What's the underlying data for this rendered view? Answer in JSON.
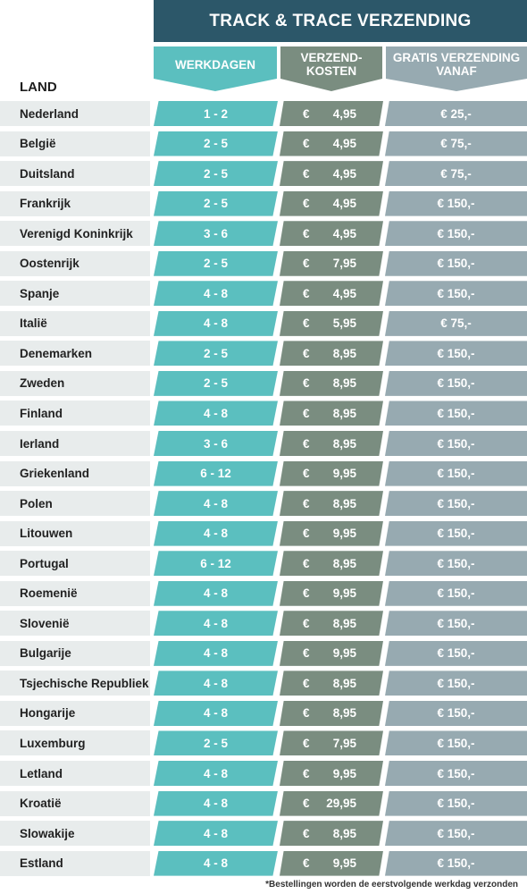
{
  "header": {
    "title": "TRACK & TRACE VERZENDING",
    "land_label": "LAND",
    "days_label": "WERKDAGEN",
    "cost_label_line1": "VERZEND-",
    "cost_label_line2": "KOSTEN",
    "free_label_line1": "GRATIS VERZENDING",
    "free_label_line2": "VANAF"
  },
  "currency_symbol": "€",
  "rows": [
    {
      "land": "Nederland",
      "days": "1 - 2",
      "cost": "4,95",
      "free": "€ 25,-"
    },
    {
      "land": "België",
      "days": "2 - 5",
      "cost": "4,95",
      "free": "€ 75,-"
    },
    {
      "land": "Duitsland",
      "days": "2 - 5",
      "cost": "4,95",
      "free": "€ 75,-"
    },
    {
      "land": "Frankrijk",
      "days": "2 - 5",
      "cost": "4,95",
      "free": "€ 150,-"
    },
    {
      "land": "Verenigd Koninkrijk",
      "days": "3 - 6",
      "cost": "4,95",
      "free": "€ 150,-"
    },
    {
      "land": "Oostenrijk",
      "days": "2 - 5",
      "cost": "7,95",
      "free": "€ 150,-"
    },
    {
      "land": "Spanje",
      "days": "4 - 8",
      "cost": "4,95",
      "free": "€ 150,-"
    },
    {
      "land": "Italië",
      "days": "4 - 8",
      "cost": "5,95",
      "free": "€ 75,-"
    },
    {
      "land": "Denemarken",
      "days": "2 - 5",
      "cost": "8,95",
      "free": "€ 150,-"
    },
    {
      "land": "Zweden",
      "days": "2 - 5",
      "cost": "8,95",
      "free": "€ 150,-"
    },
    {
      "land": "Finland",
      "days": "4 - 8",
      "cost": "8,95",
      "free": "€ 150,-"
    },
    {
      "land": "Ierland",
      "days": "3 - 6",
      "cost": "8,95",
      "free": "€ 150,-"
    },
    {
      "land": "Griekenland",
      "days": "6 - 12",
      "cost": "9,95",
      "free": "€ 150,-"
    },
    {
      "land": "Polen",
      "days": "4 - 8",
      "cost": "8,95",
      "free": "€ 150,-"
    },
    {
      "land": "Litouwen",
      "days": "4 - 8",
      "cost": "9,95",
      "free": "€ 150,-"
    },
    {
      "land": "Portugal",
      "days": "6 - 12",
      "cost": "8,95",
      "free": "€ 150,-"
    },
    {
      "land": "Roemenië",
      "days": "4 - 8",
      "cost": "9,95",
      "free": "€ 150,-"
    },
    {
      "land": "Slovenië",
      "days": "4 - 8",
      "cost": "8,95",
      "free": "€ 150,-"
    },
    {
      "land": "Bulgarije",
      "days": "4 - 8",
      "cost": "9,95",
      "free": "€ 150,-"
    },
    {
      "land": "Tsjechische Republiek",
      "days": "4 - 8",
      "cost": "8,95",
      "free": "€ 150,-"
    },
    {
      "land": "Hongarije",
      "days": "4 - 8",
      "cost": "8,95",
      "free": "€ 150,-"
    },
    {
      "land": "Luxemburg",
      "days": "2 - 5",
      "cost": "7,95",
      "free": "€ 150,-"
    },
    {
      "land": "Letland",
      "days": "4 - 8",
      "cost": "9,95",
      "free": "€ 150,-"
    },
    {
      "land": "Kroatië",
      "days": "4 - 8",
      "cost": "29,95",
      "free": "€ 150,-"
    },
    {
      "land": "Slowakije",
      "days": "4 - 8",
      "cost": "8,95",
      "free": "€ 150,-"
    },
    {
      "land": "Estland",
      "days": "4 - 8",
      "cost": "9,95",
      "free": "€ 150,-"
    }
  ],
  "footnote": "*Bestellingen worden de eerstvolgende werkdag verzonden",
  "colors": {
    "title_bg": "#2c5769",
    "days": "#5bbfbf",
    "cost": "#7a8d80",
    "free": "#97aab1",
    "land_bg": "#e8ecec"
  }
}
